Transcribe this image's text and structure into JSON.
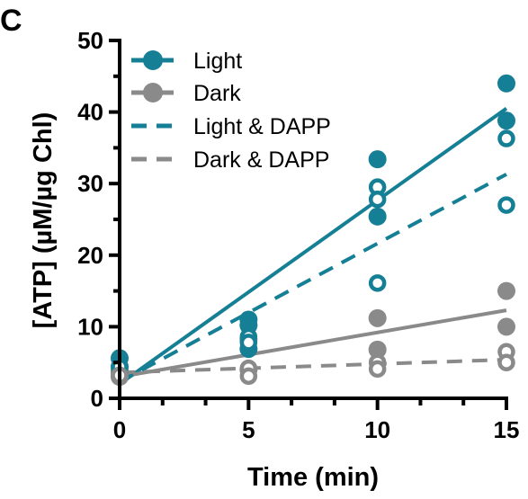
{
  "panel_label": "C",
  "colors": {
    "light": "#157f95",
    "dark": "#8a8a8a",
    "axis": "#000000"
  },
  "chart_data": {
    "type": "scatter",
    "xlabel": "Time (min)",
    "ylabel": "[ATP] (µM/µg Chl)",
    "xlim": [
      0,
      15
    ],
    "ylim": [
      0,
      50
    ],
    "xticks": [
      0,
      5,
      10,
      15
    ],
    "yticks": [
      0,
      10,
      20,
      30,
      40,
      50
    ],
    "grid": false,
    "legend_position": "top-left",
    "legend": [
      {
        "label": "Light",
        "series": "light"
      },
      {
        "label": "Dark",
        "series": "dark"
      },
      {
        "label": "Light & DAPP",
        "series": "light_dapp"
      },
      {
        "label": "Dark & DAPP",
        "series": "dark_dapp"
      }
    ],
    "series": [
      {
        "key": "light",
        "name": "Light",
        "color": "#157f95",
        "marker": "filled-circle",
        "line": "solid",
        "points": [
          [
            0,
            5.6
          ],
          [
            0,
            4.4
          ],
          [
            0,
            3.8
          ],
          [
            5,
            11.0
          ],
          [
            5,
            10.2
          ],
          [
            5,
            6.9
          ],
          [
            10,
            33.4
          ],
          [
            10,
            25.4
          ],
          [
            15,
            44.0
          ],
          [
            15,
            38.8
          ]
        ],
        "fit": [
          [
            0,
            2.0
          ],
          [
            15,
            40.5
          ]
        ]
      },
      {
        "key": "dark",
        "name": "Dark",
        "color": "#8a8a8a",
        "marker": "filled-circle",
        "line": "solid",
        "points": [
          [
            0,
            3.6
          ],
          [
            0,
            3.0
          ],
          [
            5,
            8.2
          ],
          [
            5,
            4.0
          ],
          [
            10,
            11.2
          ],
          [
            10,
            6.8
          ],
          [
            15,
            15.0
          ],
          [
            15,
            10.0
          ]
        ],
        "fit": [
          [
            0,
            3.0
          ],
          [
            15,
            12.3
          ]
        ]
      },
      {
        "key": "light_dapp",
        "name": "Light & DAPP",
        "color": "#157f95",
        "marker": "open-circle",
        "line": "dashed",
        "points": [
          [
            0,
            4.4
          ],
          [
            0,
            3.2
          ],
          [
            5,
            8.6
          ],
          [
            5,
            7.8
          ],
          [
            10,
            29.5
          ],
          [
            10,
            27.8
          ],
          [
            10,
            16.1
          ],
          [
            15,
            36.3
          ],
          [
            15,
            27.0
          ]
        ],
        "fit": [
          [
            0,
            2.3
          ],
          [
            15,
            31.3
          ]
        ]
      },
      {
        "key": "dark_dapp",
        "name": "Dark & DAPP",
        "color": "#8a8a8a",
        "marker": "open-circle",
        "line": "dashed",
        "points": [
          [
            0,
            3.2
          ],
          [
            5,
            4.2
          ],
          [
            5,
            3.1
          ],
          [
            10,
            5.0
          ],
          [
            10,
            4.1
          ],
          [
            15,
            6.5
          ],
          [
            15,
            5.0
          ]
        ],
        "fit": [
          [
            0,
            3.6
          ],
          [
            15,
            5.4
          ]
        ]
      }
    ]
  }
}
